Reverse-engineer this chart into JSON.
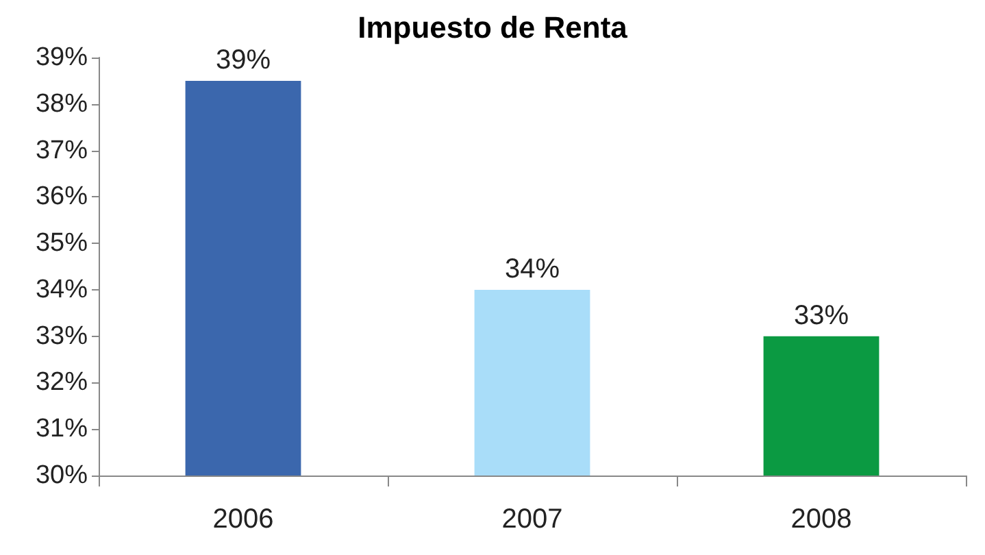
{
  "chart_data": {
    "type": "bar",
    "title": "Impuesto de Renta",
    "categories": [
      "2006",
      "2007",
      "2008"
    ],
    "values": [
      38.5,
      34,
      33
    ],
    "colors": [
      "#3b67ad",
      "#a9ddf9",
      "#0b9a42"
    ],
    "value_labels": [
      "39%",
      "34%",
      "33%"
    ],
    "ylim": [
      30,
      39
    ],
    "yticks": [
      {
        "value": 30,
        "label": "30%"
      },
      {
        "value": 31,
        "label": "31%"
      },
      {
        "value": 32,
        "label": "32%"
      },
      {
        "value": 33,
        "label": "33%"
      },
      {
        "value": 34,
        "label": "34%"
      },
      {
        "value": 35,
        "label": "35%"
      },
      {
        "value": 36,
        "label": "36%"
      },
      {
        "value": 37,
        "label": "37%"
      },
      {
        "value": 38,
        "label": "38%"
      },
      {
        "value": 39,
        "label": "39%"
      }
    ],
    "grid": false
  }
}
